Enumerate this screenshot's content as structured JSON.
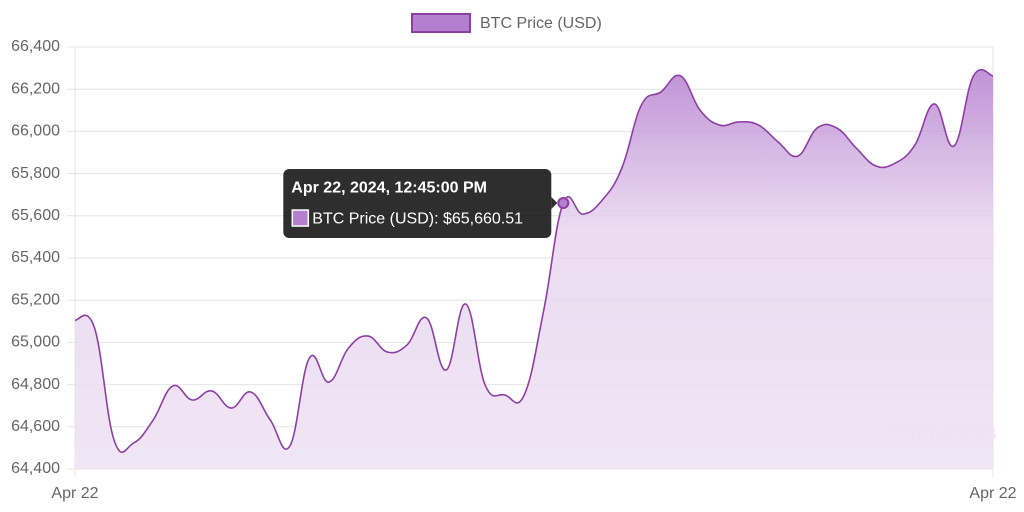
{
  "chart_data": {
    "type": "area",
    "categories": [
      "Apr 22",
      null,
      null,
      null,
      null,
      null,
      null,
      null,
      null,
      null,
      null,
      null,
      null,
      null,
      null,
      null,
      null,
      null,
      null,
      null,
      null,
      null,
      null,
      null,
      null,
      null,
      null,
      null,
      null,
      null,
      null,
      null,
      null,
      null,
      null,
      null,
      null,
      null,
      null,
      null,
      null,
      null,
      null,
      null,
      null,
      null,
      null,
      "Apr 22"
    ],
    "series": [
      {
        "name": "BTC Price (USD)",
        "color": "#8e3fa6",
        "fill": "#b57fcf",
        "values": [
          65106,
          65068,
          64537,
          64523,
          64632,
          64793,
          64727,
          64770,
          64689,
          64765,
          64632,
          64509,
          64926,
          64812,
          64973,
          65030,
          64954,
          64988,
          65116,
          64869,
          65182,
          64798,
          64751,
          64751,
          65153,
          65660.51,
          65608,
          65675,
          65827,
          66125,
          66187,
          66263,
          66101,
          66030,
          66045,
          66030,
          65950,
          65883,
          66016,
          66016,
          65921,
          65836,
          65850,
          65935,
          66130,
          65931,
          66263,
          66263
        ]
      }
    ],
    "ylim": [
      64400,
      66400
    ],
    "yticks": [
      {
        "value": 64400,
        "label": "64,400"
      },
      {
        "value": 64600,
        "label": "64,600"
      },
      {
        "value": 64800,
        "label": "64,800"
      },
      {
        "value": 65000,
        "label": "65,000"
      },
      {
        "value": 65200,
        "label": "65,200"
      },
      {
        "value": 65400,
        "label": "65,400"
      },
      {
        "value": 65600,
        "label": "65,600"
      },
      {
        "value": 65800,
        "label": "65,800"
      },
      {
        "value": 66000,
        "label": "66,000"
      },
      {
        "value": 66200,
        "label": "66,200"
      },
      {
        "value": 66400,
        "label": "66,400"
      }
    ],
    "grid": true,
    "legend": "top",
    "tooltip": {
      "title": "Apr 22, 2024, 12:45:00 PM",
      "label": "BTC Price (USD): $65,660.51",
      "value": 65660.51
    },
    "watermark": "cryptonews"
  }
}
